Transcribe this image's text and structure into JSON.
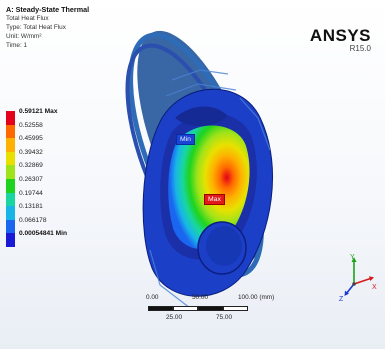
{
  "header": {
    "title": "A: Steady-State Thermal",
    "lines": [
      "Total Heat Flux",
      "Type: Total Heat Flux",
      "Unit: W/mm²",
      "Time: 1"
    ]
  },
  "logo": {
    "name": "ANSYS",
    "release": "R15.0"
  },
  "legend": {
    "items": [
      {
        "label": "0.59121 Max",
        "color": "#e2001a",
        "emphasis": true
      },
      {
        "label": "0.52558",
        "color": "#ff6a00",
        "emphasis": false
      },
      {
        "label": "0.45995",
        "color": "#ffb000",
        "emphasis": false
      },
      {
        "label": "0.39432",
        "color": "#e8e100",
        "emphasis": false
      },
      {
        "label": "0.32869",
        "color": "#9fe31a",
        "emphasis": false
      },
      {
        "label": "0.26307",
        "color": "#1ed31e",
        "emphasis": false
      },
      {
        "label": "0.19744",
        "color": "#19d6a0",
        "emphasis": false
      },
      {
        "label": "0.13181",
        "color": "#18b6e8",
        "emphasis": false
      },
      {
        "label": "0.066178",
        "color": "#1a66f0",
        "emphasis": false
      },
      {
        "label": "0.00054841 Min",
        "color": "#1a1ad6",
        "emphasis": true
      }
    ]
  },
  "probes": {
    "min": "Min",
    "max": "Max"
  },
  "scale_bar": {
    "ticks_top": [
      "0.00",
      "50.00",
      "100.00 (mm)"
    ],
    "ticks_bottom": [
      "25.00",
      "75.00"
    ]
  },
  "triad": {
    "y": "Y",
    "z": "Z",
    "x": "X"
  },
  "colors": {
    "model_base": "#1c3fc8",
    "hot": "#e2001a"
  }
}
